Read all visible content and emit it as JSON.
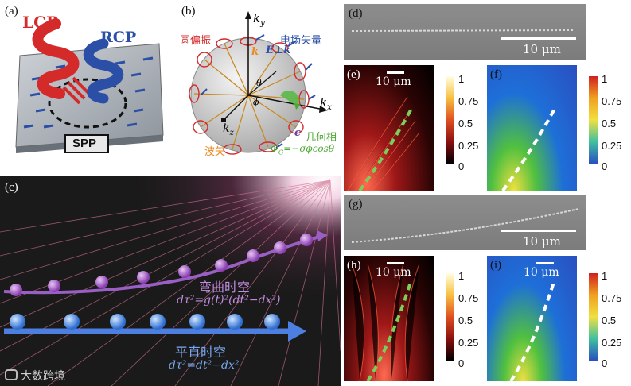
{
  "panels": {
    "a": {
      "label": "(a)",
      "lcp": "LCP",
      "rcp": "RCP",
      "spp": "SPP"
    },
    "b": {
      "label": "(b)",
      "ky": "k",
      "ky_sub": "y",
      "kx": "k",
      "kx_sub": "x",
      "kz": "k",
      "kz_sub": "z",
      "circ_pol": "圆偏振",
      "e_field": "电场矢量",
      "e_perp_k": "E⊥k",
      "k": "k",
      "theta": "θ",
      "phi": "ϕ",
      "wave_vector": "波矢",
      "c": "c",
      "geo_phase": "几何相",
      "phase_formula": "Φ",
      "phase_sub": "G",
      "phase_rhs": "=−σϕcosθ"
    },
    "c": {
      "label": "(c)",
      "curved": "弯曲时空",
      "curved_eq": "dτ²=g(t)²(dt²−dx²)",
      "flat": "平直时空",
      "flat_eq": "dτ²=dt²−dx²",
      "watermark": "大数跨境"
    },
    "d": {
      "label": "(d)",
      "scale": "10 μm"
    },
    "e": {
      "label": "(e)",
      "scale": "10 μm",
      "ticks": [
        "1",
        "0.75",
        "0.5",
        "0.25",
        "0"
      ]
    },
    "f": {
      "label": "(f)",
      "ticks": [
        "1",
        "0.75",
        "0.5",
        "0.25",
        "0"
      ]
    },
    "g": {
      "label": "(g)",
      "scale": "10 μm"
    },
    "h": {
      "label": "(h)",
      "scale": "10 μm",
      "ticks": [
        "1",
        "0.75",
        "0.5",
        "0.25",
        "0"
      ]
    },
    "i": {
      "label": "(i)",
      "scale": "10 μm",
      "ticks": [
        "1",
        "0.75",
        "0.5",
        "0.25",
        "0"
      ]
    }
  },
  "colors": {
    "lcp": "#d42a2a",
    "rcp": "#2b4fa6",
    "curved": "#9a5fc4",
    "flat": "#4d7fe0",
    "phase": "#4ca832",
    "orange": "#e88a20"
  }
}
